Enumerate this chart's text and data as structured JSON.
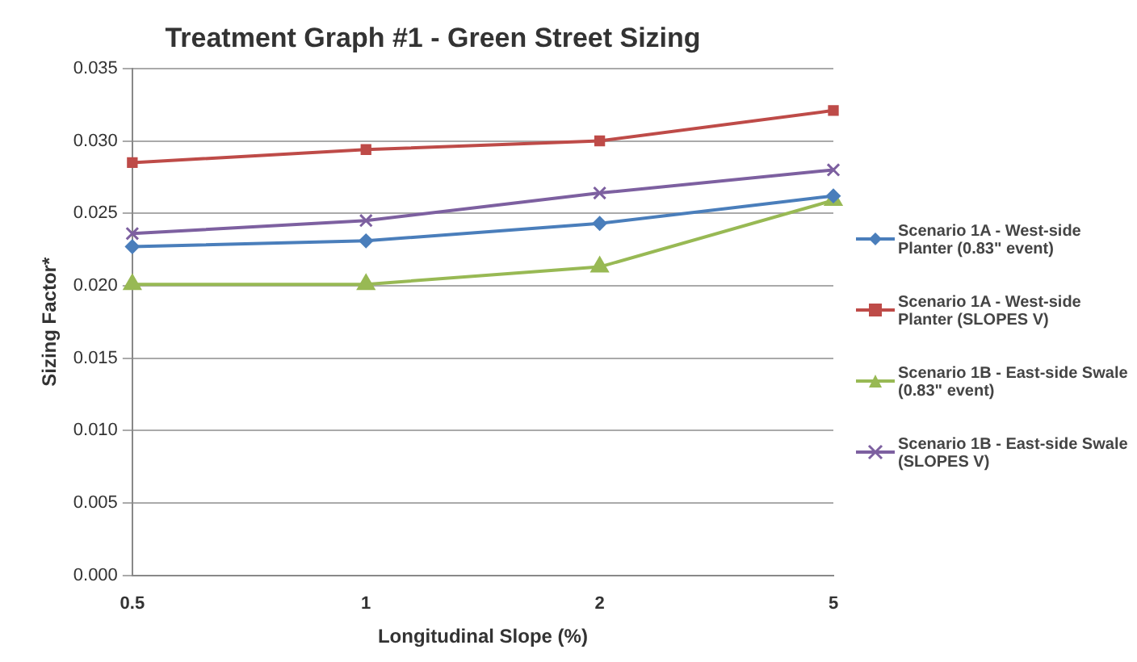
{
  "chart_data": {
    "type": "line",
    "title": "Treatment Graph #1 - Green Street Sizing",
    "xlabel": "Longitudinal Slope (%)",
    "ylabel": "Sizing Factor*",
    "categories": [
      "0.5",
      "1",
      "2",
      "5"
    ],
    "series": [
      {
        "name": "Scenario 1A - West-side Planter (0.83\" event)",
        "color": "#4a7ebb",
        "marker": "diamond",
        "values": [
          0.0227,
          0.0231,
          0.0243,
          0.0262
        ]
      },
      {
        "name": "Scenario 1A - West-side Planter (SLOPES V)",
        "color": "#be4b48",
        "marker": "square",
        "values": [
          0.0285,
          0.0294,
          0.03,
          0.0321
        ]
      },
      {
        "name": "Scenario 1B - East-side Swale (0.83\" event)",
        "color": "#98b954",
        "marker": "triangle",
        "values": [
          0.0201,
          0.0201,
          0.0213,
          0.0259
        ]
      },
      {
        "name": "Scenario 1B - East-side Swale (SLOPES V)",
        "color": "#7d60a0",
        "marker": "cross",
        "values": [
          0.0236,
          0.0245,
          0.0264,
          0.028
        ]
      }
    ],
    "ylim": [
      0,
      0.035
    ],
    "yticks": [
      {
        "value": 0,
        "label": "0.000"
      },
      {
        "value": 0.005,
        "label": "0.005"
      },
      {
        "value": 0.01,
        "label": "0.010"
      },
      {
        "value": 0.015,
        "label": "0.015"
      },
      {
        "value": 0.02,
        "label": "0.020"
      },
      {
        "value": 0.025,
        "label": "0.025"
      },
      {
        "value": 0.03,
        "label": "0.030"
      },
      {
        "value": 0.035,
        "label": "0.035"
      }
    ],
    "grid": "y",
    "legend": "right"
  }
}
